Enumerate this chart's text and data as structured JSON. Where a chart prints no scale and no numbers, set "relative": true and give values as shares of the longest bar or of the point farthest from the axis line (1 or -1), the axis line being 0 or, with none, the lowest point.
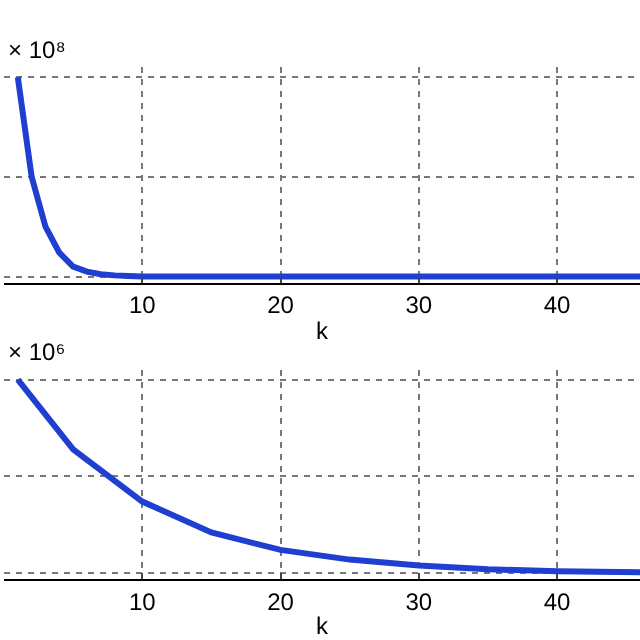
{
  "chart_data": [
    {
      "type": "line",
      "relative": true,
      "xlabel": "k",
      "annotations": [
        "× 10⁸"
      ],
      "grid": true,
      "marker": "none",
      "line_style": "solid",
      "xlim": [
        0,
        46
      ],
      "xticks": [
        10,
        20,
        30,
        40
      ],
      "x": [
        1,
        2,
        3,
        4,
        5,
        6,
        7,
        8,
        9,
        10,
        46
      ],
      "series": [
        {
          "color": "#1f3fd0",
          "values": [
            1,
            0.5,
            0.25,
            0.12,
            0.05,
            0.025,
            0.012,
            0.006,
            0.003,
            0,
            0
          ]
        }
      ]
    },
    {
      "type": "line",
      "relative": true,
      "xlabel": "k",
      "annotations": [
        "× 10⁶"
      ],
      "grid": true,
      "marker": "none",
      "line_style": "solid",
      "xlim": [
        0,
        46
      ],
      "xticks": [
        10,
        20,
        30,
        40
      ],
      "x": [
        1,
        5,
        10,
        15,
        20,
        25,
        30,
        35,
        40,
        46
      ],
      "series": [
        {
          "color": "#1f3fd0",
          "values": [
            1,
            0.64,
            0.37,
            0.21,
            0.12,
            0.07,
            0.04,
            0.02,
            0.01,
            0.005
          ]
        }
      ]
    }
  ]
}
